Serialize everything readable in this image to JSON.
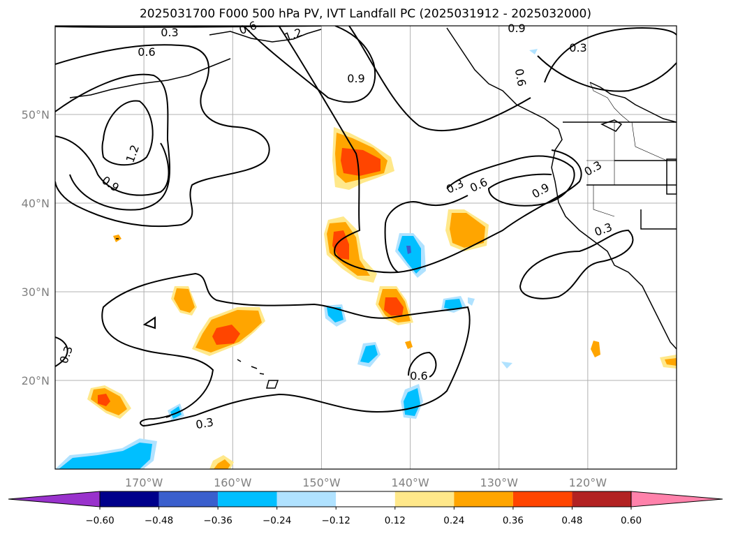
{
  "title": "2025031700 F000 500 hPa PV, IVT Landfall PC (2025031912 - 2025032000)",
  "map": {
    "projection": "PlateCarree",
    "lon_range": [
      -180,
      -110
    ],
    "lat_range": [
      10,
      60
    ],
    "lat_ticks": [
      {
        "value": 20,
        "label": "20°N"
      },
      {
        "value": 30,
        "label": "30°N"
      },
      {
        "value": 40,
        "label": "40°N"
      },
      {
        "value": 50,
        "label": "50°N"
      }
    ],
    "lon_ticks": [
      {
        "value": -170,
        "label": "170°W"
      },
      {
        "value": -160,
        "label": "160°W"
      },
      {
        "value": -150,
        "label": "150°W"
      },
      {
        "value": -140,
        "label": "140°W"
      },
      {
        "value": -130,
        "label": "130°W"
      },
      {
        "value": -120,
        "label": "120°W"
      }
    ],
    "gridlines": true,
    "contour_labels": [
      "0.3",
      "0.6",
      "0.9",
      "1.2",
      "0.9",
      "0.6",
      "0.3",
      "0.9",
      "0.6",
      "0.3",
      "0.9",
      "0.3",
      "0.3",
      "0.6",
      "0.3",
      "0.3",
      "1.2",
      "0.6"
    ]
  },
  "colorbar": {
    "colors": [
      "#9932cc",
      "#00008b",
      "#3a5fcd",
      "#00bfff",
      "#b0e2ff",
      "#ffffff",
      "#ffe88a",
      "#ffa500",
      "#ff4500",
      "#b22222",
      "#ff82ab"
    ],
    "tick_labels": [
      "−0.60",
      "−0.48",
      "−0.36",
      "−0.24",
      "−0.12",
      "0.12",
      "0.24",
      "0.36",
      "0.48",
      "0.60"
    ]
  }
}
